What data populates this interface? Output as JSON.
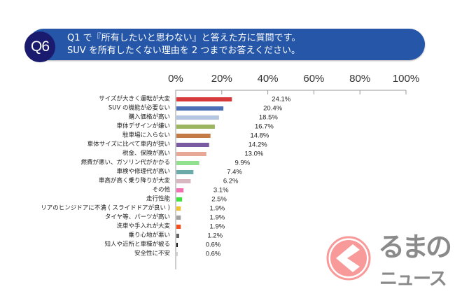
{
  "header": {
    "badge": "Q6",
    "line1": "Q1 で『所有したいと思わない』と答えた方に質問です。",
    "line2": "SUV を所有したくない理由を 2 つまでお答えください。"
  },
  "logo": {
    "line1": "るまの",
    "line2": "ニュース",
    "color": "#f89a9a"
  },
  "chart_data": {
    "type": "bar",
    "orientation": "horizontal",
    "xlim": [
      0,
      100
    ],
    "xticks": [
      "0%",
      "20%",
      "40%",
      "60%",
      "80%",
      "100%"
    ],
    "categories": [
      "サイズが大きく運転が大変",
      "SUV の機能が必要ない",
      "購入価格が高い",
      "車体デザインが嫌い",
      "駐車場に入らない",
      "車体サイズに比べて車内が狭い",
      "税金、保険が高い",
      "燃費が悪い、ガソリン代がかかる",
      "車検や修理代が高い",
      "車高が高く乗り降りが大変",
      "その他",
      "走行性能",
      "リアのヒンジドアに不満 ( スライドドアが良い )",
      "タイヤ等、パーツが高い",
      "洗車や手入れが大変",
      "乗り心地が悪い",
      "知人や近所と車種が被る",
      "安全性に不安"
    ],
    "values": [
      24.1,
      20.4,
      18.5,
      16.7,
      14.8,
      14.2,
      13.0,
      9.9,
      7.4,
      6.2,
      3.1,
      2.5,
      1.9,
      1.9,
      1.9,
      1.2,
      0.6,
      0.6
    ],
    "value_labels": [
      "24.1%",
      "20.4%",
      "18.5%",
      "16.7%",
      "14.8%",
      "14.2%",
      "13.0%",
      "9.9%",
      "7.4%",
      "6.2%",
      "3.1%",
      "2.5%",
      "1.9%",
      "1.9%",
      "1.9%",
      "1.2%",
      "0.6%",
      "0.6%"
    ],
    "colors": [
      "#d63a3a",
      "#4a6fb5",
      "#b5c7e0",
      "#9bb560",
      "#c47a45",
      "#7a5aa0",
      "#e8a898",
      "#90e090",
      "#6aaaa8",
      "#d8b8c0",
      "#f070b0",
      "#40e040",
      "#f0c030",
      "#a0a0a0",
      "#f05020",
      "#606060",
      "#101010",
      "#d0d0d0"
    ]
  }
}
